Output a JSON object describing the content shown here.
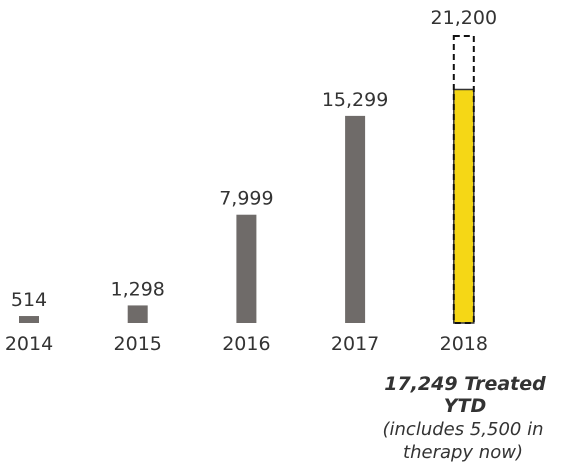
{
  "chart_data": {
    "type": "bar",
    "categories": [
      "2014",
      "2015",
      "2016",
      "2017",
      "2018"
    ],
    "values": [
      514,
      1298,
      7999,
      15299,
      17249
    ],
    "value_labels": [
      "514",
      "1,298",
      "7,999",
      "15,299",
      null
    ],
    "colors": [
      "#6f6b69",
      "#6f6b69",
      "#6f6b69",
      "#6f6b69",
      "#f5d716"
    ],
    "target": {
      "category_index": 4,
      "value": 21200,
      "label": "21,200"
    },
    "annotation": {
      "headline": "17,249 Treated YTD",
      "note": "(includes 5,500 in therapy now)"
    }
  }
}
